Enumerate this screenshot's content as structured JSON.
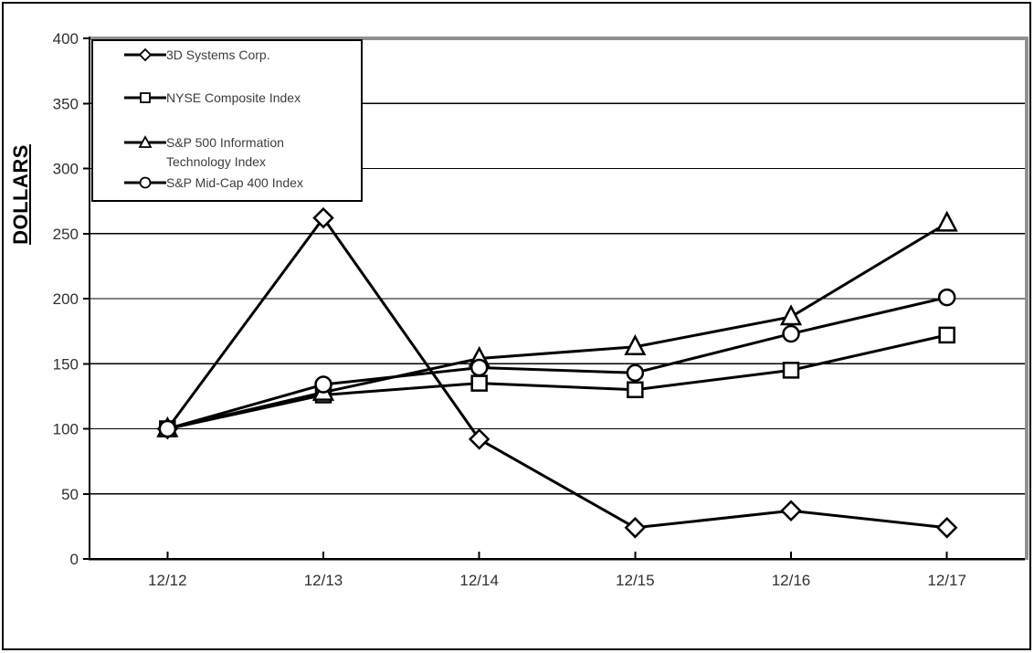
{
  "chart_data": {
    "type": "line",
    "title": "",
    "xlabel": "",
    "ylabel": "DOLLARS",
    "categories": [
      "12/12",
      "12/13",
      "12/14",
      "12/15",
      "12/16",
      "12/17"
    ],
    "y_ticks": [
      0,
      50,
      100,
      150,
      200,
      250,
      300,
      350,
      400
    ],
    "ylim": [
      0,
      400
    ],
    "grid": "horizontal",
    "legend_position": "top-left-inside",
    "series": [
      {
        "name": "3D Systems Corp.",
        "marker": "diamond",
        "color": "#000000",
        "values": [
          100,
          262,
          92,
          24,
          37,
          24
        ]
      },
      {
        "name": "NYSE Composite Index",
        "marker": "square",
        "color": "#000000",
        "values": [
          100,
          126,
          135,
          130,
          145,
          172
        ]
      },
      {
        "name": "S&P 500 Information Technology Index",
        "marker": "triangle",
        "color": "#000000",
        "values": [
          100,
          128,
          154,
          163,
          186,
          258
        ]
      },
      {
        "name": "S&P Mid-Cap 400 Index",
        "marker": "circle",
        "color": "#000000",
        "values": [
          100,
          134,
          147,
          143,
          173,
          201
        ]
      }
    ],
    "colors": {
      "line": "#000000",
      "grid": "#000000",
      "axis": "#000000",
      "frame_shadow": "#909090",
      "tick_text": "#303030",
      "legend_text": "#3c3c3c"
    }
  }
}
